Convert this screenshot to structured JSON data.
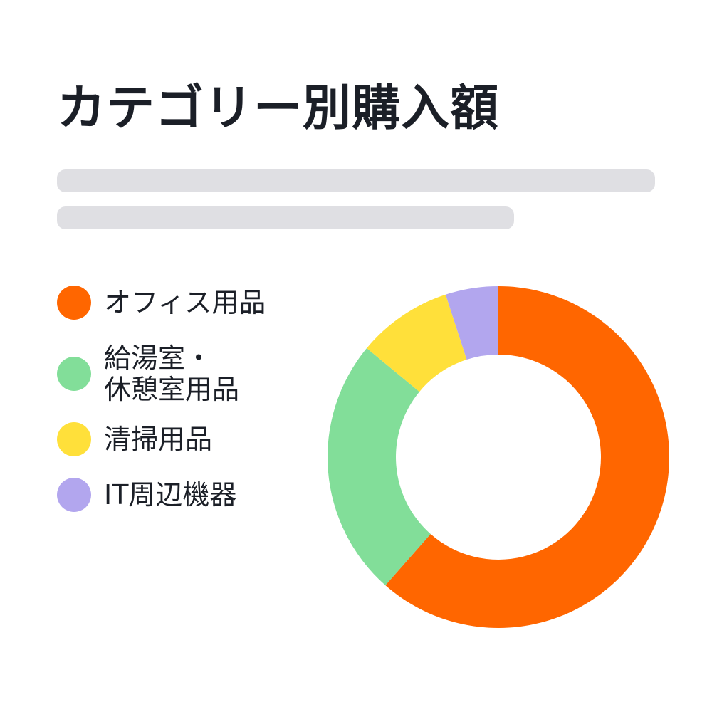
{
  "chart_data": {
    "type": "pie",
    "variant": "donut",
    "title": "カテゴリー別購入額",
    "categories": [
      "オフィス用品",
      "給湯室・\n休憩室用品",
      "清掃用品",
      "IT周辺機器"
    ],
    "values": [
      61.5,
      24.5,
      9.0,
      5.0
    ],
    "unit": "%",
    "colors": [
      "#ff6600",
      "#82de99",
      "#ffe03a",
      "#b2a6ee"
    ],
    "legend_position": "left",
    "grid": false
  }
}
